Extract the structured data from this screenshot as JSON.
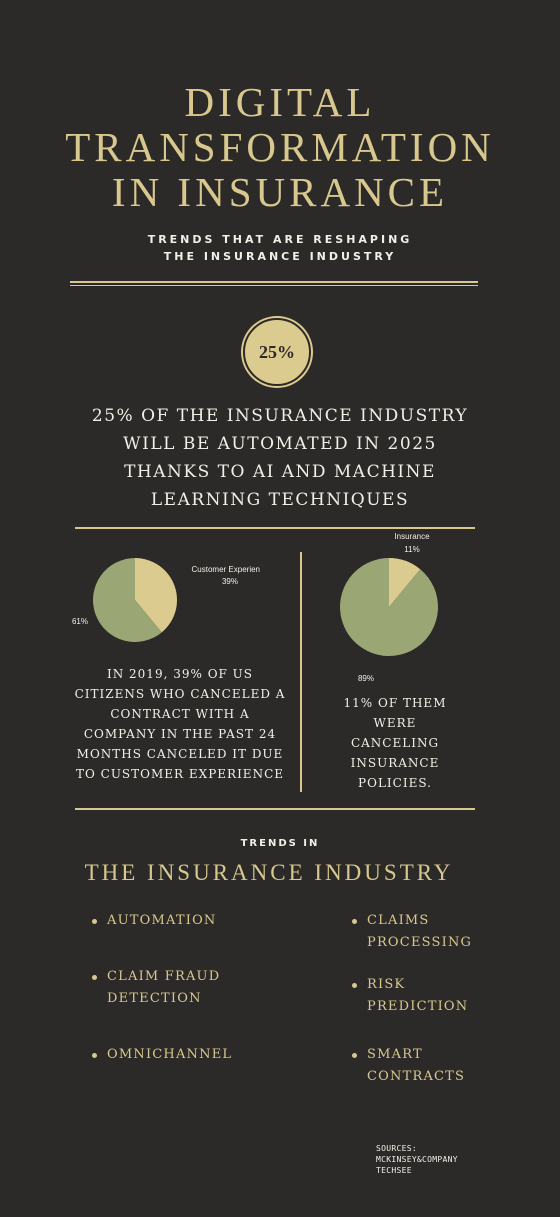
{
  "header": {
    "title_lines": [
      "DIGITAL",
      "TRANSFORMATION",
      "IN INSURANCE"
    ],
    "subtitle_lines": [
      "TRENDS THAT ARE RESHAPING",
      "THE INSURANCE INDUSTRY"
    ]
  },
  "badge": {
    "text": "25%"
  },
  "stat_lines": [
    "25% OF THE INSURANCE INDUSTRY",
    "WILL BE AUTOMATED IN 2025",
    "THANKS TO AI AND MACHINE",
    "LEARNING TECHNIQUES"
  ],
  "left_text_lines": [
    "IN 2019, 39% OF US",
    "CITIZENS WHO CANCELED A",
    "CONTRACT WITH A",
    "COMPANY IN THE PAST 24",
    "MONTHS CANCELED IT DUE",
    "TO CUSTOMER EXPERIENCE"
  ],
  "right_text_lines": [
    "11% OF THEM",
    "WERE",
    "CANCELING",
    "INSURANCE",
    "POLICIES."
  ],
  "chart_data": [
    {
      "type": "pie",
      "slices": [
        {
          "label": "Customer Experience",
          "value": 39,
          "value_label": "39%",
          "color": "#dccb8f"
        },
        {
          "label": "",
          "value": 61,
          "value_label": "61%",
          "color": "#9aa674"
        }
      ]
    },
    {
      "type": "pie",
      "slices": [
        {
          "label": "Insurance",
          "value": 11,
          "value_label": "11%",
          "color": "#dccb8f"
        },
        {
          "label": "",
          "value": 89,
          "value_label": "89%",
          "color": "#9aa674"
        }
      ]
    }
  ],
  "trends": {
    "heading": "TRENDS IN",
    "title": "THE INSURANCE INDUSTRY",
    "left": [
      {
        "lines": [
          "AUTOMATION"
        ]
      },
      {
        "lines": [
          "CLAIM FRAUD",
          "DETECTION"
        ]
      },
      {
        "lines": [
          "OMNICHANNEL"
        ]
      }
    ],
    "right": [
      {
        "lines": [
          "CLAIMS",
          "PROCESSING"
        ]
      },
      {
        "lines": [
          "RISK",
          "PREDICTION"
        ]
      },
      {
        "lines": [
          "SMART",
          "CONTRACTS"
        ]
      }
    ]
  },
  "sources_lines": [
    "SOURCES:",
    "MCKINSEY&COMPANY",
    "TECHSEE"
  ],
  "colors": {
    "background": "#2b2a28",
    "gold": "#d9c88e",
    "pie_gold": "#dccb8f",
    "pie_green": "#9aa674"
  }
}
